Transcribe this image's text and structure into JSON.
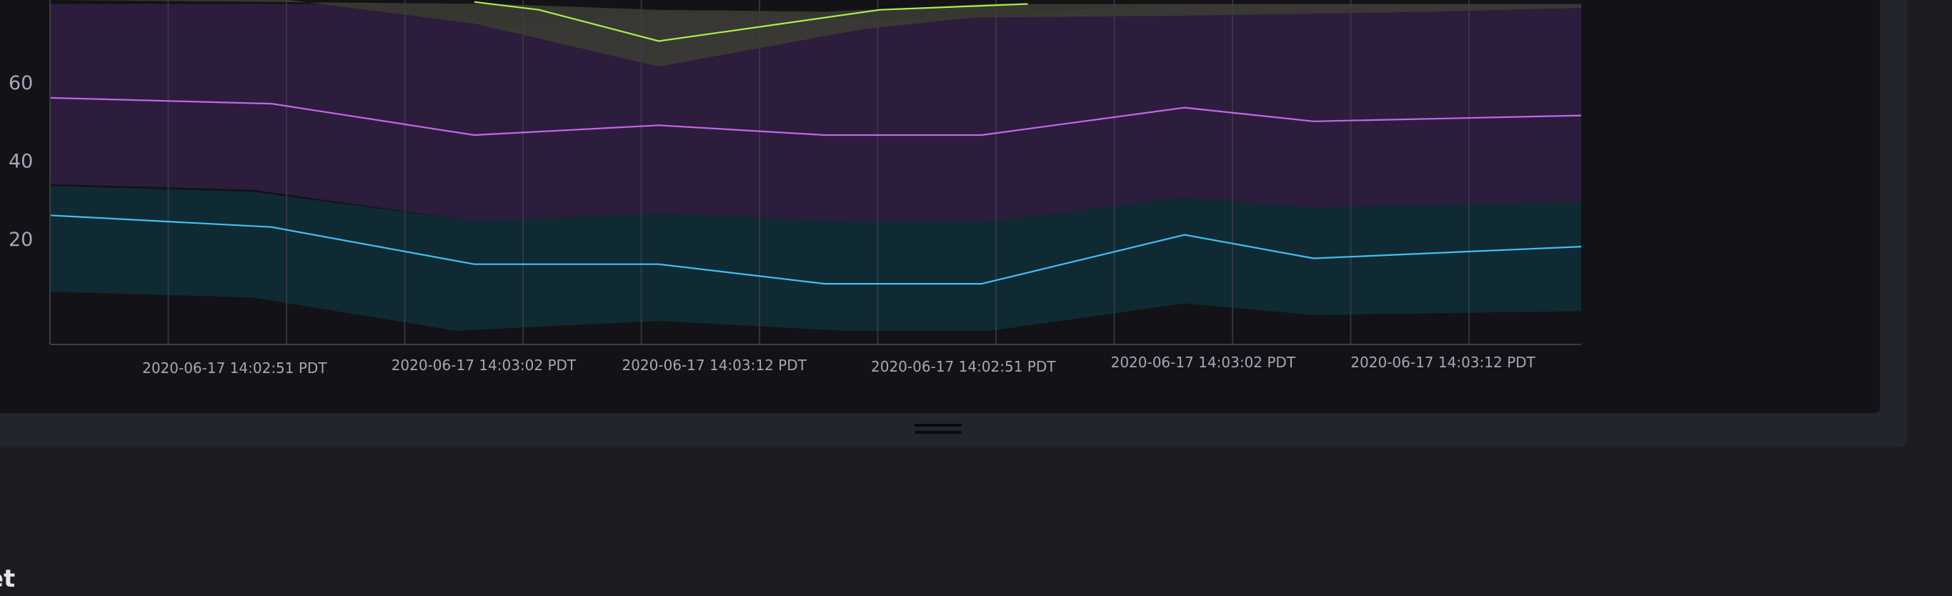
{
  "colors": {
    "page_background": "#1b1b20",
    "cell_frame": "#23252d",
    "cell_body": "#121217",
    "grid": "#3a3c47",
    "axis_text": "#a5a8b6"
  },
  "chart_data": {
    "type": "line",
    "title": "",
    "xlabel": "",
    "ylabel": "",
    "ylim": [
      -7,
      81
    ],
    "y_ticks": [
      20,
      40,
      60
    ],
    "grid": true,
    "x_ticks": [
      {
        "label": "2020-06-17 14:02:51 PDT",
        "x": 0.5
      },
      {
        "label": "2020-06-17 14:03:02 PDT",
        "x": 1.85
      },
      {
        "label": "2020-06-17 14:03:12 PDT",
        "x": 3.1
      },
      {
        "label": "2020-06-17 14:02:51 PDT",
        "x": 4.45
      },
      {
        "label": "2020-06-17 14:03:02 PDT",
        "x": 5.75
      },
      {
        "label": "2020-06-17 14:03:12 PDT",
        "x": 7.05
      }
    ],
    "xlim": [
      0,
      8.3
    ],
    "series": [
      {
        "color": "#42c0f5",
        "band_color": "#0f2a33",
        "points": [
          [
            0,
            26
          ],
          [
            1.2,
            23
          ],
          [
            2.3,
            13.5
          ],
          [
            3.3,
            13.5
          ],
          [
            4.2,
            8.5
          ],
          [
            5.05,
            8.5
          ],
          [
            6.15,
            21
          ],
          [
            6.85,
            15
          ],
          [
            8.3,
            18
          ]
        ],
        "band_upper": [
          [
            0,
            33.5
          ],
          [
            1.1,
            32
          ],
          [
            2.3,
            24.5
          ],
          [
            3.3,
            26.5
          ],
          [
            4.3,
            24.5
          ],
          [
            5.1,
            24.5
          ],
          [
            6.15,
            30.5
          ],
          [
            6.85,
            28
          ],
          [
            8.3,
            29.5
          ]
        ],
        "band_lower": [
          [
            0,
            6.5
          ],
          [
            1.1,
            5
          ],
          [
            2.2,
            -3.5
          ],
          [
            3.3,
            -1
          ],
          [
            4.3,
            -3.5
          ],
          [
            5.1,
            -3.5
          ],
          [
            6.15,
            3.5
          ],
          [
            6.85,
            0.5
          ],
          [
            8.3,
            1.5
          ]
        ]
      },
      {
        "color": "#c566ea",
        "band_color": "#2c1d3c",
        "points": [
          [
            0,
            56
          ],
          [
            1.2,
            54.5
          ],
          [
            2.3,
            46.5
          ],
          [
            3.3,
            49
          ],
          [
            4.2,
            46.5
          ],
          [
            5.05,
            46.5
          ],
          [
            6.15,
            53.5
          ],
          [
            6.85,
            50
          ],
          [
            8.3,
            51.5
          ]
        ],
        "band_upper": [
          [
            0,
            80
          ],
          [
            1.5,
            80
          ],
          [
            2.5,
            74
          ],
          [
            3.3,
            78
          ],
          [
            4.5,
            76
          ],
          [
            5.1,
            77
          ],
          [
            6.15,
            80
          ],
          [
            6.85,
            80
          ],
          [
            8.3,
            80
          ]
        ],
        "band_lower": [
          [
            0,
            34
          ],
          [
            1.1,
            32.5
          ],
          [
            2.3,
            24.5
          ],
          [
            3.3,
            26.5
          ],
          [
            4.3,
            24.5
          ],
          [
            5.1,
            24.5
          ],
          [
            6.15,
            30.5
          ],
          [
            6.85,
            28
          ],
          [
            8.3,
            29.5
          ]
        ]
      },
      {
        "color": "#a6f04a",
        "band_color": "#3b3c33",
        "points": [
          [
            2.3,
            80.5
          ],
          [
            2.65,
            78.5
          ],
          [
            3.3,
            70.5
          ],
          [
            4.5,
            78.5
          ],
          [
            5.3,
            80
          ]
        ],
        "band_upper": [
          [
            2.4,
            80
          ],
          [
            3.3,
            78.5
          ],
          [
            4.2,
            78
          ],
          [
            5.1,
            80
          ],
          [
            6.15,
            80
          ],
          [
            8.3,
            80
          ]
        ],
        "band_lower": [
          [
            0,
            81
          ],
          [
            1.3,
            81
          ],
          [
            2.3,
            75
          ],
          [
            3.3,
            64
          ],
          [
            4.4,
            73.5
          ],
          [
            5.0,
            76.5
          ],
          [
            6.15,
            77
          ],
          [
            7.5,
            78
          ],
          [
            8.3,
            79
          ]
        ]
      }
    ]
  },
  "bottom": {
    "title_fragment": "et"
  }
}
